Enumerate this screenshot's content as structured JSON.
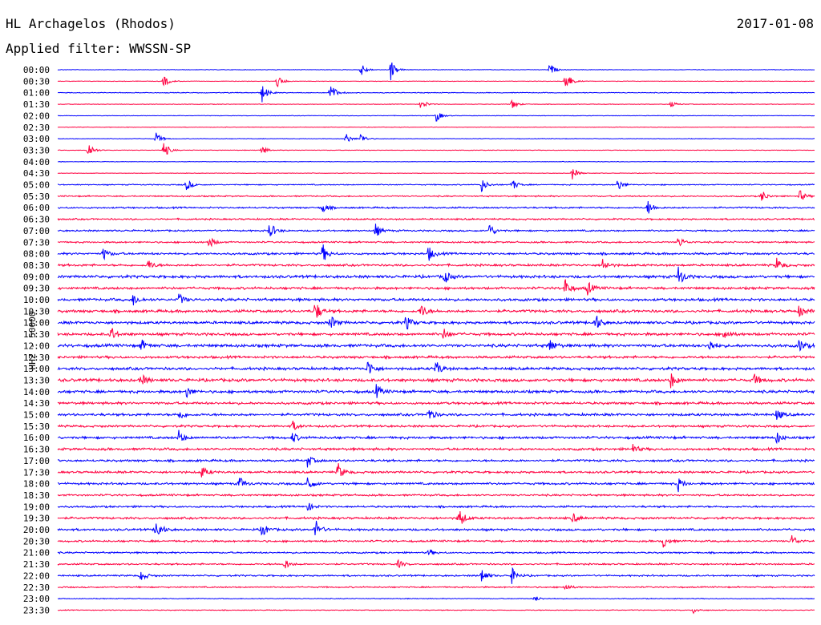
{
  "header": {
    "station": "HL Archagelos (Rhodos)",
    "date": "2017-01-08",
    "filter": "Applied filter: WWSSN-SP"
  },
  "side_label": "HHZ - 50000",
  "chart_data": {
    "type": "line",
    "title": "HL Archagelos (Rhodos)",
    "subtitle": "Applied filter: WWSSN-SP",
    "ylabel": "HHZ - 50000",
    "xlabel": "",
    "row_labels": [
      "00:00",
      "00:30",
      "01:00",
      "01:30",
      "02:00",
      "02:30",
      "03:00",
      "03:30",
      "04:00",
      "04:30",
      "05:00",
      "05:30",
      "06:00",
      "06:30",
      "07:00",
      "07:30",
      "08:00",
      "08:30",
      "09:00",
      "09:30",
      "10:00",
      "10:30",
      "11:00",
      "11:30",
      "12:00",
      "12:30",
      "13:00",
      "13:30",
      "14:00",
      "14:30",
      "15:00",
      "15:30",
      "16:00",
      "16:30",
      "17:00",
      "17:30",
      "18:00",
      "18:30",
      "19:00",
      "19:30",
      "20:00",
      "20:30",
      "21:00",
      "21:30",
      "22:00",
      "22:30",
      "23:00",
      "23:30"
    ],
    "row_minutes": 30,
    "colors": [
      "#0000ff",
      "#ff0040"
    ],
    "row_noise": [
      0.2,
      0.2,
      0.3,
      0.2,
      0.2,
      0.2,
      0.2,
      0.2,
      0.2,
      0.2,
      0.4,
      0.5,
      0.6,
      0.6,
      0.6,
      0.6,
      0.8,
      0.8,
      1.0,
      0.9,
      1.0,
      1.0,
      1.0,
      1.0,
      1.1,
      0.9,
      1.0,
      1.1,
      1.0,
      0.9,
      0.9,
      0.8,
      0.9,
      0.9,
      0.8,
      0.8,
      0.8,
      0.7,
      0.7,
      0.8,
      0.8,
      0.7,
      0.6,
      0.6,
      0.6,
      0.5,
      0.3,
      0.3
    ],
    "events": [
      {
        "row": 0,
        "pos": 0.4,
        "amp": 10
      },
      {
        "row": 0,
        "pos": 0.44,
        "amp": 14
      },
      {
        "row": 0,
        "pos": 0.65,
        "amp": 8
      },
      {
        "row": 1,
        "pos": 0.14,
        "amp": 8
      },
      {
        "row": 1,
        "pos": 0.29,
        "amp": 9
      },
      {
        "row": 1,
        "pos": 0.67,
        "amp": 18
      },
      {
        "row": 2,
        "pos": 0.27,
        "amp": 12
      },
      {
        "row": 2,
        "pos": 0.36,
        "amp": 14
      },
      {
        "row": 3,
        "pos": 0.48,
        "amp": 8
      },
      {
        "row": 3,
        "pos": 0.6,
        "amp": 7
      },
      {
        "row": 3,
        "pos": 0.81,
        "amp": 4
      },
      {
        "row": 4,
        "pos": 0.5,
        "amp": 8
      },
      {
        "row": 6,
        "pos": 0.13,
        "amp": 8
      },
      {
        "row": 6,
        "pos": 0.38,
        "amp": 8
      },
      {
        "row": 6,
        "pos": 0.4,
        "amp": 7
      },
      {
        "row": 7,
        "pos": 0.04,
        "amp": 12
      },
      {
        "row": 7,
        "pos": 0.14,
        "amp": 12
      },
      {
        "row": 7,
        "pos": 0.27,
        "amp": 6
      },
      {
        "row": 9,
        "pos": 0.68,
        "amp": 8
      },
      {
        "row": 10,
        "pos": 0.17,
        "amp": 8
      },
      {
        "row": 10,
        "pos": 0.56,
        "amp": 9
      },
      {
        "row": 10,
        "pos": 0.6,
        "amp": 8
      },
      {
        "row": 10,
        "pos": 0.74,
        "amp": 8
      },
      {
        "row": 11,
        "pos": 0.93,
        "amp": 8
      },
      {
        "row": 11,
        "pos": 0.98,
        "amp": 8
      },
      {
        "row": 12,
        "pos": 0.35,
        "amp": 7
      },
      {
        "row": 12,
        "pos": 0.78,
        "amp": 10
      },
      {
        "row": 14,
        "pos": 0.28,
        "amp": 12
      },
      {
        "row": 14,
        "pos": 0.42,
        "amp": 9
      },
      {
        "row": 14,
        "pos": 0.57,
        "amp": 10
      },
      {
        "row": 15,
        "pos": 0.2,
        "amp": 8
      },
      {
        "row": 15,
        "pos": 0.82,
        "amp": 8
      },
      {
        "row": 16,
        "pos": 0.06,
        "amp": 8
      },
      {
        "row": 16,
        "pos": 0.35,
        "amp": 12
      },
      {
        "row": 16,
        "pos": 0.49,
        "amp": 10
      },
      {
        "row": 17,
        "pos": 0.12,
        "amp": 7
      },
      {
        "row": 17,
        "pos": 0.72,
        "amp": 9
      },
      {
        "row": 17,
        "pos": 0.95,
        "amp": 9
      },
      {
        "row": 18,
        "pos": 0.51,
        "amp": 10
      },
      {
        "row": 18,
        "pos": 0.82,
        "amp": 14
      },
      {
        "row": 19,
        "pos": 0.67,
        "amp": 12
      },
      {
        "row": 19,
        "pos": 0.7,
        "amp": 9
      },
      {
        "row": 20,
        "pos": 0.1,
        "amp": 8
      },
      {
        "row": 20,
        "pos": 0.16,
        "amp": 8
      },
      {
        "row": 21,
        "pos": 0.34,
        "amp": 14
      },
      {
        "row": 21,
        "pos": 0.48,
        "amp": 10
      },
      {
        "row": 21,
        "pos": 0.98,
        "amp": 8
      },
      {
        "row": 22,
        "pos": 0.36,
        "amp": 10
      },
      {
        "row": 22,
        "pos": 0.46,
        "amp": 10
      },
      {
        "row": 22,
        "pos": 0.71,
        "amp": 12
      },
      {
        "row": 23,
        "pos": 0.07,
        "amp": 10
      },
      {
        "row": 23,
        "pos": 0.51,
        "amp": 8
      },
      {
        "row": 23,
        "pos": 0.88,
        "amp": 8
      },
      {
        "row": 24,
        "pos": 0.11,
        "amp": 8
      },
      {
        "row": 24,
        "pos": 0.65,
        "amp": 9
      },
      {
        "row": 24,
        "pos": 0.86,
        "amp": 9
      },
      {
        "row": 24,
        "pos": 0.98,
        "amp": 9
      },
      {
        "row": 26,
        "pos": 0.41,
        "amp": 12
      },
      {
        "row": 26,
        "pos": 0.5,
        "amp": 10
      },
      {
        "row": 27,
        "pos": 0.11,
        "amp": 8
      },
      {
        "row": 27,
        "pos": 0.81,
        "amp": 10
      },
      {
        "row": 27,
        "pos": 0.92,
        "amp": 8
      },
      {
        "row": 28,
        "pos": 0.17,
        "amp": 8
      },
      {
        "row": 28,
        "pos": 0.42,
        "amp": 10
      },
      {
        "row": 30,
        "pos": 0.16,
        "amp": 8
      },
      {
        "row": 30,
        "pos": 0.49,
        "amp": 9
      },
      {
        "row": 30,
        "pos": 0.95,
        "amp": 8
      },
      {
        "row": 31,
        "pos": 0.31,
        "amp": 7
      },
      {
        "row": 32,
        "pos": 0.16,
        "amp": 9
      },
      {
        "row": 32,
        "pos": 0.31,
        "amp": 7
      },
      {
        "row": 32,
        "pos": 0.95,
        "amp": 8
      },
      {
        "row": 33,
        "pos": 0.76,
        "amp": 6
      },
      {
        "row": 34,
        "pos": 0.33,
        "amp": 9
      },
      {
        "row": 35,
        "pos": 0.19,
        "amp": 8
      },
      {
        "row": 35,
        "pos": 0.37,
        "amp": 12
      },
      {
        "row": 36,
        "pos": 0.24,
        "amp": 9
      },
      {
        "row": 36,
        "pos": 0.33,
        "amp": 12
      },
      {
        "row": 36,
        "pos": 0.82,
        "amp": 9
      },
      {
        "row": 38,
        "pos": 0.33,
        "amp": 6
      },
      {
        "row": 39,
        "pos": 0.53,
        "amp": 14
      },
      {
        "row": 39,
        "pos": 0.68,
        "amp": 7
      },
      {
        "row": 40,
        "pos": 0.13,
        "amp": 16
      },
      {
        "row": 40,
        "pos": 0.27,
        "amp": 10
      },
      {
        "row": 40,
        "pos": 0.34,
        "amp": 14
      },
      {
        "row": 41,
        "pos": 0.8,
        "amp": 8
      },
      {
        "row": 41,
        "pos": 0.97,
        "amp": 8
      },
      {
        "row": 42,
        "pos": 0.49,
        "amp": 5
      },
      {
        "row": 43,
        "pos": 0.3,
        "amp": 7
      },
      {
        "row": 43,
        "pos": 0.45,
        "amp": 5
      },
      {
        "row": 44,
        "pos": 0.11,
        "amp": 8
      },
      {
        "row": 44,
        "pos": 0.56,
        "amp": 10
      },
      {
        "row": 44,
        "pos": 0.6,
        "amp": 10
      },
      {
        "row": 45,
        "pos": 0.67,
        "amp": 5
      },
      {
        "row": 46,
        "pos": 0.63,
        "amp": 4
      },
      {
        "row": 47,
        "pos": 0.84,
        "amp": 4
      }
    ]
  }
}
